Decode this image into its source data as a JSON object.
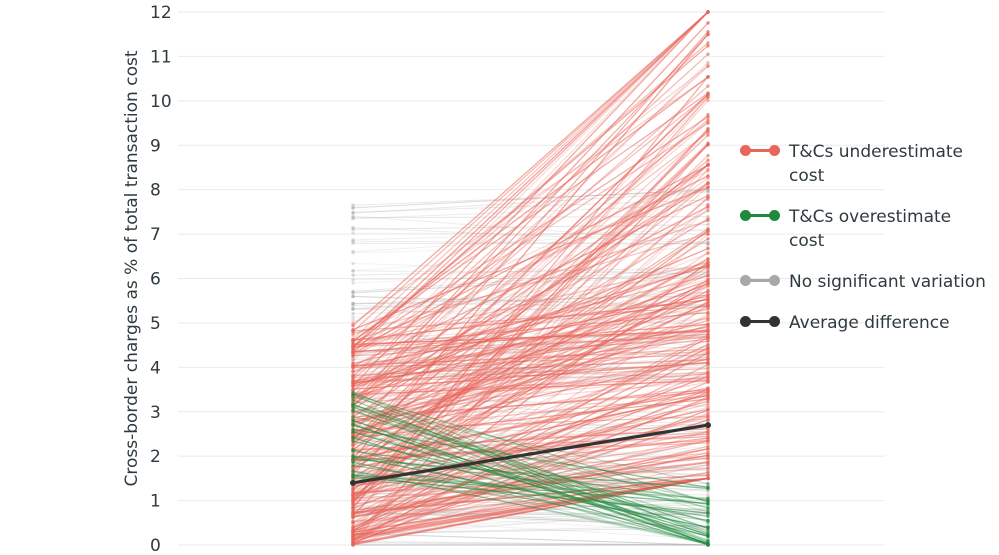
{
  "chart_data": {
    "type": "line",
    "ylabel": "Cross-border charges as % of total transaction cost",
    "ylim": [
      0,
      12
    ],
    "yticks": [
      0,
      1,
      2,
      3,
      4,
      5,
      6,
      7,
      8,
      9,
      10,
      11,
      12
    ],
    "grid": true,
    "legend_position": "right",
    "colors": {
      "underestimate": "#e8655a",
      "overestimate": "#1f8a3c",
      "no_variation": "#a8a8a8",
      "average": "#333333"
    },
    "legend": [
      {
        "key": "underestimate",
        "label": "T&Cs underestimate cost"
      },
      {
        "key": "overestimate",
        "label": "T&Cs overestimate cost"
      },
      {
        "key": "no_variation",
        "label": "No significant variation"
      },
      {
        "key": "average",
        "label": "Average difference"
      }
    ],
    "average_difference": {
      "start": 1.4,
      "end": 2.7
    },
    "series_groups": [
      {
        "key": "underestimate",
        "count": 260,
        "start_range": [
          0,
          5
        ],
        "end_range": [
          1.5,
          12
        ]
      },
      {
        "key": "overestimate",
        "count": 40,
        "start_range": [
          1.5,
          3.5
        ],
        "end_range": [
          0,
          1.5
        ]
      },
      {
        "key": "no_variation",
        "count": 120,
        "start_range": [
          0,
          7.7
        ],
        "end_range": [
          0,
          8
        ]
      }
    ]
  }
}
